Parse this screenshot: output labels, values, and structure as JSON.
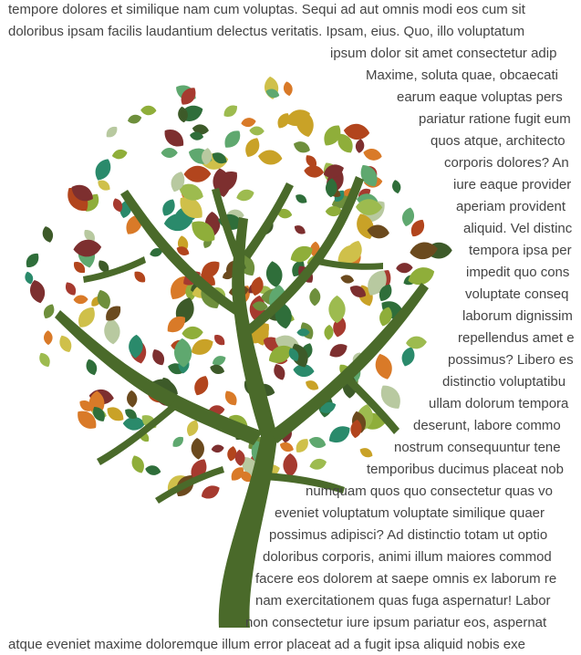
{
  "article": {
    "lines": [
      "tempore dolores et similique nam cum voluptas. Sequi ad aut omnis modi eos cum sit",
      "doloribus ipsam facilis laudantium delectus veritatis. Ipsam, eius. Quo, illo voluptatum",
      "ipsum dolor sit amet consectetur adip",
      "Maxime, soluta quae, obcaecati",
      "earum eaque voluptas pers",
      "pariatur ratione fugit eum",
      "quos atque, architecto",
      "corporis dolores? An",
      "iure eaque provider",
      "aperiam provident",
      "aliquid. Vel distinc",
      "tempora ipsa per",
      "impedit quo cons",
      "voluptate conseq",
      "laborum dignissim",
      "repellendus amet e",
      "possimus? Libero es",
      "distinctio voluptatibu",
      "ullam dolorum tempora",
      "deserunt, labore commo",
      "nostrum consequuntur tene",
      "temporibus ducimus placeat nob",
      "numquam quos quo consectetur quas vo",
      "eveniet voluptatum voluptate similique quaer",
      "possimus adipisci? Ad distinctio totam ut optio",
      "doloribus corporis, animi illum maiores commod",
      "facere eos dolorem at saepe omnis ex laborum re",
      "nam exercitationem quas fuga aspernatur! Labor",
      "non consectetur iure ipsum pariatur eos, aspernat",
      "atque eveniet maxime doloremque illum error placeat ad a fugit ipsa aliquid nobis exe"
    ]
  },
  "figure": {
    "icon": "tree-illustration-icon",
    "trunk_color": "#4a6a2a",
    "leaf_colors": [
      "#8fae3a",
      "#c9a227",
      "#2f6e3a",
      "#b2451d",
      "#6b4a1e",
      "#5fa86f",
      "#d97a28",
      "#a63a2f",
      "#9dbb4f",
      "#3d5a29",
      "#cfc04a",
      "#6e8f3c",
      "#b8c9a0",
      "#2a8a6b",
      "#7d2f2f"
    ]
  }
}
